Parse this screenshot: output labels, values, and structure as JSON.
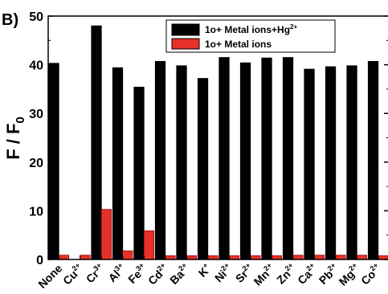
{
  "panel_label": "B)",
  "chart_data": {
    "type": "bar",
    "categories": [
      {
        "base": "None",
        "sup": ""
      },
      {
        "base": "Cu",
        "sup": "2+"
      },
      {
        "base": "Cr",
        "sup": "3+"
      },
      {
        "base": "Al",
        "sup": "3+"
      },
      {
        "base": "Fe",
        "sup": "3+"
      },
      {
        "base": "Cd",
        "sup": "2+"
      },
      {
        "base": "Ba",
        "sup": "2+"
      },
      {
        "base": "K",
        "sup": "+"
      },
      {
        "base": "Ni",
        "sup": "2+"
      },
      {
        "base": "Sr",
        "sup": "2+"
      },
      {
        "base": "Mn",
        "sup": "2+"
      },
      {
        "base": "Zn",
        "sup": "2+"
      },
      {
        "base": "Ca",
        "sup": "2+"
      },
      {
        "base": "Pb",
        "sup": "2+"
      },
      {
        "base": "Mg",
        "sup": "2+"
      },
      {
        "base": "Co",
        "sup": "2+"
      }
    ],
    "series": [
      {
        "name_base": "1o+ Metal ions+Hg",
        "name_sup": "2+",
        "color": "#000000",
        "values": [
          40.3,
          0,
          48.0,
          39.4,
          35.4,
          40.7,
          39.8,
          37.2,
          41.5,
          40.4,
          41.4,
          41.5,
          39.1,
          39.6,
          39.8,
          40.7
        ]
      },
      {
        "name_base": "1o+ Metal ions",
        "name_sup": "",
        "color": "#e8302a",
        "values": [
          0.9,
          0.9,
          10.3,
          1.8,
          5.9,
          0.8,
          0.8,
          0.8,
          0.8,
          0.8,
          0.8,
          0.9,
          0.9,
          0.9,
          0.9,
          0.8
        ]
      }
    ],
    "ylabel_main": "F / F",
    "ylabel_sub": "0",
    "xlabel": "",
    "ylim": [
      0,
      50
    ],
    "yticks": [
      0,
      10,
      20,
      30,
      40,
      50
    ],
    "legend_position": "top-right",
    "grid": false
  }
}
